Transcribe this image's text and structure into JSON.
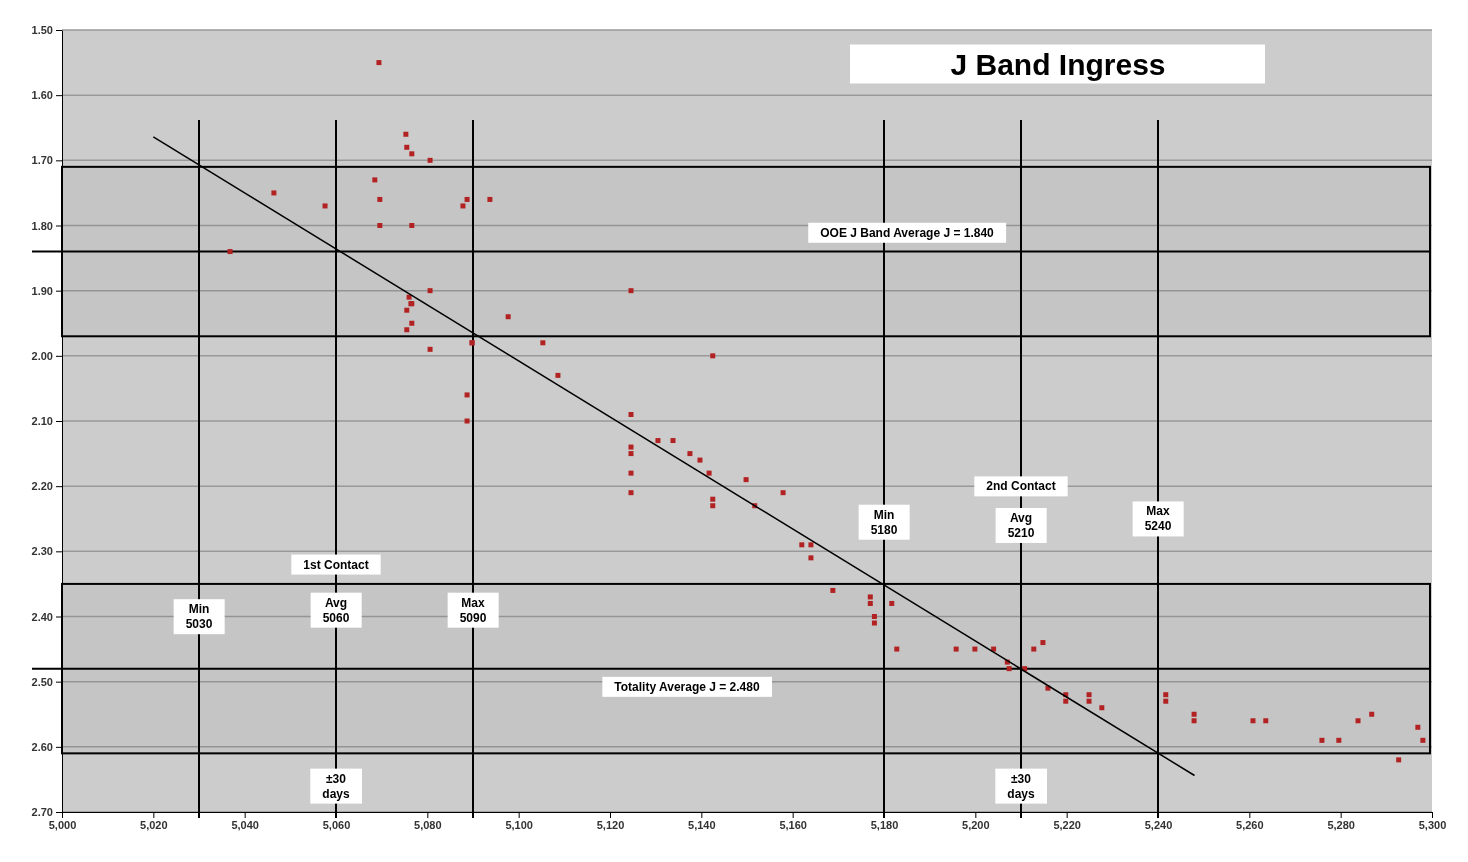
{
  "chart_data": {
    "type": "scatter",
    "title": "J Band Ingress",
    "xlim": [
      5000,
      5300
    ],
    "xticks": [
      {
        "value": 5000,
        "label": "5,000"
      },
      {
        "value": 5020,
        "label": "5,020"
      },
      {
        "value": 5040,
        "label": "5,040"
      },
      {
        "value": 5060,
        "label": "5,060"
      },
      {
        "value": 5080,
        "label": "5,080"
      },
      {
        "value": 5100,
        "label": "5,100"
      },
      {
        "value": 5120,
        "label": "5,120"
      },
      {
        "value": 5140,
        "label": "5,140"
      },
      {
        "value": 5160,
        "label": "5,160"
      },
      {
        "value": 5180,
        "label": "5,180"
      },
      {
        "value": 5200,
        "label": "5,200"
      },
      {
        "value": 5220,
        "label": "5,220"
      },
      {
        "value": 5240,
        "label": "5,240"
      },
      {
        "value": 5260,
        "label": "5,260"
      },
      {
        "value": 5280,
        "label": "5,280"
      },
      {
        "value": 5300,
        "label": "5,300"
      }
    ],
    "ylim": [
      2.7,
      1.5
    ],
    "yticks": [
      {
        "value": 1.5,
        "label": "1.50"
      },
      {
        "value": 1.6,
        "label": "1.60"
      },
      {
        "value": 1.7,
        "label": "1.70"
      },
      {
        "value": 1.8,
        "label": "1.80"
      },
      {
        "value": 1.9,
        "label": "1.90"
      },
      {
        "value": 2.0,
        "label": "2.00"
      },
      {
        "value": 2.1,
        "label": "2.10"
      },
      {
        "value": 2.2,
        "label": "2.20"
      },
      {
        "value": 2.3,
        "label": "2.30"
      },
      {
        "value": 2.4,
        "label": "2.40"
      },
      {
        "value": 2.5,
        "label": "2.50"
      },
      {
        "value": 2.6,
        "label": "2.60"
      },
      {
        "value": 2.7,
        "label": "2.70"
      }
    ],
    "grid": "y",
    "series": [
      {
        "type": "scatter",
        "marker": "square",
        "color": "#b22222",
        "x": [
          5069.4,
          5075.3,
          5075.5,
          5076.6,
          5080.6,
          5068.5,
          5069.6,
          5069.6,
          5046.4,
          5057.6,
          5036.8,
          5076.6,
          5087.8,
          5088.7,
          5093.7,
          5080.6,
          5076,
          5076.4,
          5075.5,
          5076.6,
          5075.5,
          5076.6,
          5080.6,
          5089.8,
          5089.8,
          5088.7,
          5088.7,
          5097.7,
          5105.3,
          5108.6,
          5124.6,
          5142.5,
          5124.6,
          5124.6,
          5124.6,
          5124.6,
          5124.6,
          5130.5,
          5133.8,
          5137.5,
          5139.7,
          5141.7,
          5142.5,
          5142.5,
          5149.8,
          5151.7,
          5157.9,
          5162,
          5164,
          5164,
          5168.8,
          5177,
          5177,
          5177.9,
          5177.9,
          5181.7,
          5182.8,
          5195.8,
          5199.9,
          5204,
          5207,
          5207.4,
          5210.8,
          5212.8,
          5214.8,
          5215.9,
          5219.8,
          5219.8,
          5224.9,
          5224.9,
          5227.7,
          5241.7,
          5241.7,
          5247.9,
          5247.9,
          5260.8,
          5263.6,
          5275.9,
          5279.6,
          5283.8,
          5286.8,
          5292.7,
          5296.9,
          5298
        ],
        "values": [
          1.55,
          1.66,
          1.68,
          1.69,
          1.7,
          1.73,
          1.76,
          1.8,
          1.75,
          1.77,
          1.84,
          1.8,
          1.77,
          1.76,
          1.76,
          1.9,
          1.91,
          1.92,
          1.93,
          1.92,
          1.96,
          1.95,
          1.99,
          1.98,
          1.98,
          2.06,
          2.1,
          1.94,
          1.98,
          2.03,
          1.9,
          2.0,
          2.09,
          2.14,
          2.15,
          2.18,
          2.21,
          2.13,
          2.13,
          2.15,
          2.16,
          2.18,
          2.22,
          2.23,
          2.19,
          2.23,
          2.21,
          2.29,
          2.29,
          2.31,
          2.36,
          2.37,
          2.38,
          2.4,
          2.41,
          2.38,
          2.45,
          2.45,
          2.45,
          2.45,
          2.47,
          2.48,
          2.48,
          2.45,
          2.44,
          2.51,
          2.52,
          2.53,
          2.52,
          2.53,
          2.54,
          2.52,
          2.53,
          2.55,
          2.56,
          2.56,
          2.56,
          2.59,
          2.59,
          2.56,
          2.55,
          2.62,
          2.57,
          2.59
        ]
      },
      {
        "type": "line",
        "color": "#000000",
        "x": [
          5020,
          5248
        ],
        "values": [
          1.664,
          2.644
        ]
      }
    ],
    "ref_lines": [
      {
        "axis": "y",
        "value": 1.84,
        "label": "OOE J Band  Average J = 1.840"
      },
      {
        "axis": "y",
        "value": 2.48,
        "label": "Totality  Average J = 2.480"
      },
      {
        "axis": "x",
        "value": 5030
      },
      {
        "axis": "x",
        "value": 5060
      },
      {
        "axis": "x",
        "value": 5090
      },
      {
        "axis": "x",
        "value": 5180
      },
      {
        "axis": "x",
        "value": 5210
      },
      {
        "axis": "x",
        "value": 5240
      }
    ],
    "bands": [
      {
        "axis": "y",
        "from": 1.71,
        "to": 1.97,
        "color": "#000000"
      },
      {
        "axis": "y",
        "from": 2.35,
        "to": 2.61,
        "color": "#000000"
      }
    ],
    "annotations": [
      {
        "text": "1st Contact",
        "x": 5060,
        "y": 2.32
      },
      {
        "text": "Min\n5030",
        "x": 5030,
        "y": 2.4
      },
      {
        "text": "Avg\n5060",
        "x": 5060,
        "y": 2.39
      },
      {
        "text": "Max\n5090",
        "x": 5090,
        "y": 2.39
      },
      {
        "text": "±30\ndays",
        "x": 5060,
        "y": 2.66
      },
      {
        "text": "2nd Contact",
        "x": 5210,
        "y": 2.2
      },
      {
        "text": "Min\n5180",
        "x": 5180,
        "y": 2.255
      },
      {
        "text": "Avg\n5210",
        "x": 5210,
        "y": 2.26
      },
      {
        "text": "Max\n5240",
        "x": 5240,
        "y": 2.25
      },
      {
        "text": "±30\ndays",
        "x": 5210,
        "y": 2.66
      }
    ]
  }
}
